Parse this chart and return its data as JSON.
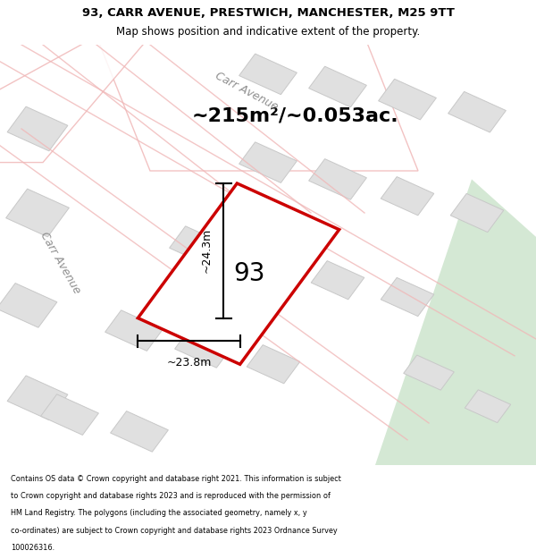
{
  "title_line1": "93, CARR AVENUE, PRESTWICH, MANCHESTER, M25 9TT",
  "title_line2": "Map shows position and indicative extent of the property.",
  "area_text": "~215m²/~0.053ac.",
  "label_93": "93",
  "dim_width": "~23.8m",
  "dim_height": "~24.3m",
  "street_label1": "Carr Avenue",
  "street_label2": "Carr Avenue",
  "footer_lines": [
    "Contains OS data © Crown copyright and database right 2021. This information is subject",
    "to Crown copyright and database rights 2023 and is reproduced with the permission of",
    "HM Land Registry. The polygons (including the associated geometry, namely x, y",
    "co-ordinates) are subject to Crown copyright and database rights 2023 Ordnance Survey",
    "100026316."
  ],
  "map_bg": "#f0f0f0",
  "plot_color": "#cc0000",
  "block_fill": "#e0e0e0",
  "block_edge": "#c8c8c8",
  "road_color": "#f0b8b8",
  "green_area": "#d4e8d4",
  "white": "#ffffff"
}
